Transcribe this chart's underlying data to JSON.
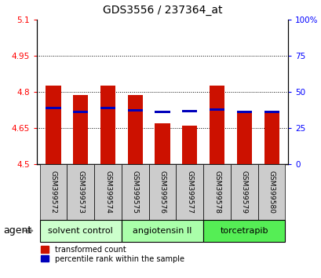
{
  "title": "GDS3556 / 237364_at",
  "samples": [
    "GSM399572",
    "GSM399573",
    "GSM399574",
    "GSM399575",
    "GSM399576",
    "GSM399577",
    "GSM399578",
    "GSM399579",
    "GSM399580"
  ],
  "bar_heights": [
    4.825,
    4.785,
    4.825,
    4.785,
    4.67,
    4.66,
    4.825,
    4.72,
    4.72
  ],
  "blue_heights": [
    4.728,
    4.712,
    4.728,
    4.718,
    4.712,
    4.715,
    4.722,
    4.712,
    4.712
  ],
  "bar_color": "#cc1100",
  "blue_color": "#0000bb",
  "base": 4.5,
  "ylim_left": [
    4.5,
    5.1
  ],
  "ylim_right": [
    0,
    100
  ],
  "yticks_left": [
    4.5,
    4.65,
    4.8,
    4.95,
    5.1
  ],
  "yticks_right": [
    0,
    25,
    50,
    75,
    100
  ],
  "ytick_labels_left": [
    "4.5",
    "4.65",
    "4.8",
    "4.95",
    "5.1"
  ],
  "ytick_labels_right": [
    "0",
    "25",
    "50",
    "75",
    "100%"
  ],
  "grid_lines": [
    4.65,
    4.8,
    4.95
  ],
  "groups": [
    {
      "label": "solvent control",
      "samples": [
        0,
        1,
        2
      ],
      "color": "#ccffcc"
    },
    {
      "label": "angiotensin II",
      "samples": [
        3,
        4,
        5
      ],
      "color": "#aaffaa"
    },
    {
      "label": "torcetrapib",
      "samples": [
        6,
        7,
        8
      ],
      "color": "#55ee55"
    }
  ],
  "agent_label": "agent",
  "legend_red": "transformed count",
  "legend_blue": "percentile rank within the sample",
  "bar_width": 0.55,
  "blue_bar_width": 0.55,
  "blue_bar_height": 0.01,
  "sample_box_color": "#cccccc"
}
